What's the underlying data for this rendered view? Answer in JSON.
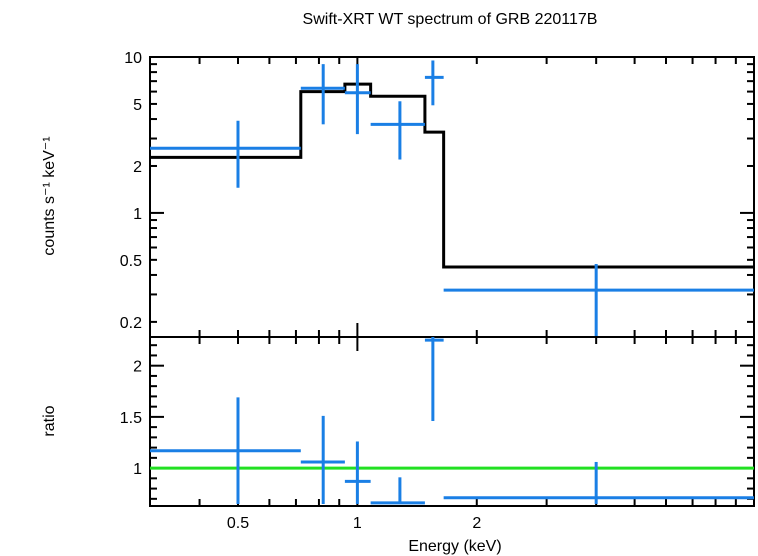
{
  "chart_data": {
    "type": "spectrum",
    "title": "Swift-XRT WT spectrum of GRB 220117B",
    "xlabel": "Energy (keV)",
    "x_scale": "log",
    "xlim": [
      0.3,
      10
    ],
    "x_ticks": [
      {
        "value": 0.5,
        "label": "0.5"
      },
      {
        "value": 1,
        "label": "1"
      },
      {
        "value": 2,
        "label": "2"
      }
    ],
    "colors": {
      "data": "#1a7fe5",
      "model": "#000000",
      "unity": "#22e022",
      "frame": "#000000"
    },
    "top_panel": {
      "ylabel": "counts s⁻¹ keV⁻¹",
      "y_scale": "log",
      "ylim": [
        0.16,
        10
      ],
      "y_ticks": [
        {
          "value": 10,
          "label": "10"
        },
        {
          "value": 5,
          "label": "5"
        },
        {
          "value": 2,
          "label": "2"
        },
        {
          "value": 1,
          "label": "1"
        },
        {
          "value": 0.5,
          "label": "0.5"
        },
        {
          "value": 0.2,
          "label": "0.2"
        }
      ],
      "data": [
        {
          "x": 0.5,
          "xlo": 0.3,
          "xhi": 0.72,
          "y": 2.6,
          "ylo": 1.45,
          "yhi": 3.9
        },
        {
          "x": 0.82,
          "xlo": 0.72,
          "xhi": 0.93,
          "y": 6.3,
          "ylo": 3.7,
          "yhi": 9.0
        },
        {
          "x": 1.0,
          "xlo": 0.93,
          "xhi": 1.08,
          "y": 5.9,
          "ylo": 3.2,
          "yhi": 9.0
        },
        {
          "x": 1.28,
          "xlo": 1.08,
          "xhi": 1.48,
          "y": 3.7,
          "ylo": 2.2,
          "yhi": 5.2
        },
        {
          "x": 1.55,
          "xlo": 1.48,
          "xhi": 1.65,
          "y": 7.4,
          "ylo": 4.9,
          "yhi": 9.5
        },
        {
          "x": 4.0,
          "xlo": 1.65,
          "xhi": 10.0,
          "y": 0.32,
          "ylo": 0.16,
          "yhi": 0.47
        }
      ],
      "model_steps": [
        {
          "xlo": 0.3,
          "xhi": 0.72,
          "y": 2.27
        },
        {
          "xlo": 0.72,
          "xhi": 0.93,
          "y": 6.0
        },
        {
          "xlo": 0.93,
          "xhi": 1.08,
          "y": 6.7
        },
        {
          "xlo": 1.08,
          "xhi": 1.48,
          "y": 5.6
        },
        {
          "xlo": 1.48,
          "xhi": 1.65,
          "y": 3.3
        },
        {
          "xlo": 1.65,
          "xhi": 10.0,
          "y": 0.45
        }
      ]
    },
    "bottom_panel": {
      "ylabel": "ratio",
      "y_scale": "linear",
      "ylim": [
        0.63,
        2.28
      ],
      "y_ticks": [
        {
          "value": 1,
          "label": "1"
        },
        {
          "value": 1.5,
          "label": "1.5"
        },
        {
          "value": 2,
          "label": "2"
        }
      ],
      "unity_line": 1,
      "data": [
        {
          "x": 0.5,
          "xlo": 0.3,
          "xhi": 0.72,
          "y": 1.17,
          "ylo": 0.65,
          "yhi": 1.69
        },
        {
          "x": 0.82,
          "xlo": 0.72,
          "xhi": 0.93,
          "y": 1.06,
          "ylo": 0.65,
          "yhi": 1.51
        },
        {
          "x": 1.0,
          "xlo": 0.93,
          "xhi": 1.08,
          "y": 0.87,
          "ylo": 0.65,
          "yhi": 1.26
        },
        {
          "x": 1.28,
          "xlo": 1.08,
          "xhi": 1.48,
          "y": 0.66,
          "ylo": 0.65,
          "yhi": 0.91
        },
        {
          "x": 1.55,
          "xlo": 1.48,
          "xhi": 1.65,
          "y": 2.25,
          "ylo": 1.46,
          "yhi": 2.28
        },
        {
          "x": 4.0,
          "xlo": 1.65,
          "xhi": 10.0,
          "y": 0.71,
          "ylo": 0.65,
          "yhi": 1.06
        }
      ]
    }
  }
}
